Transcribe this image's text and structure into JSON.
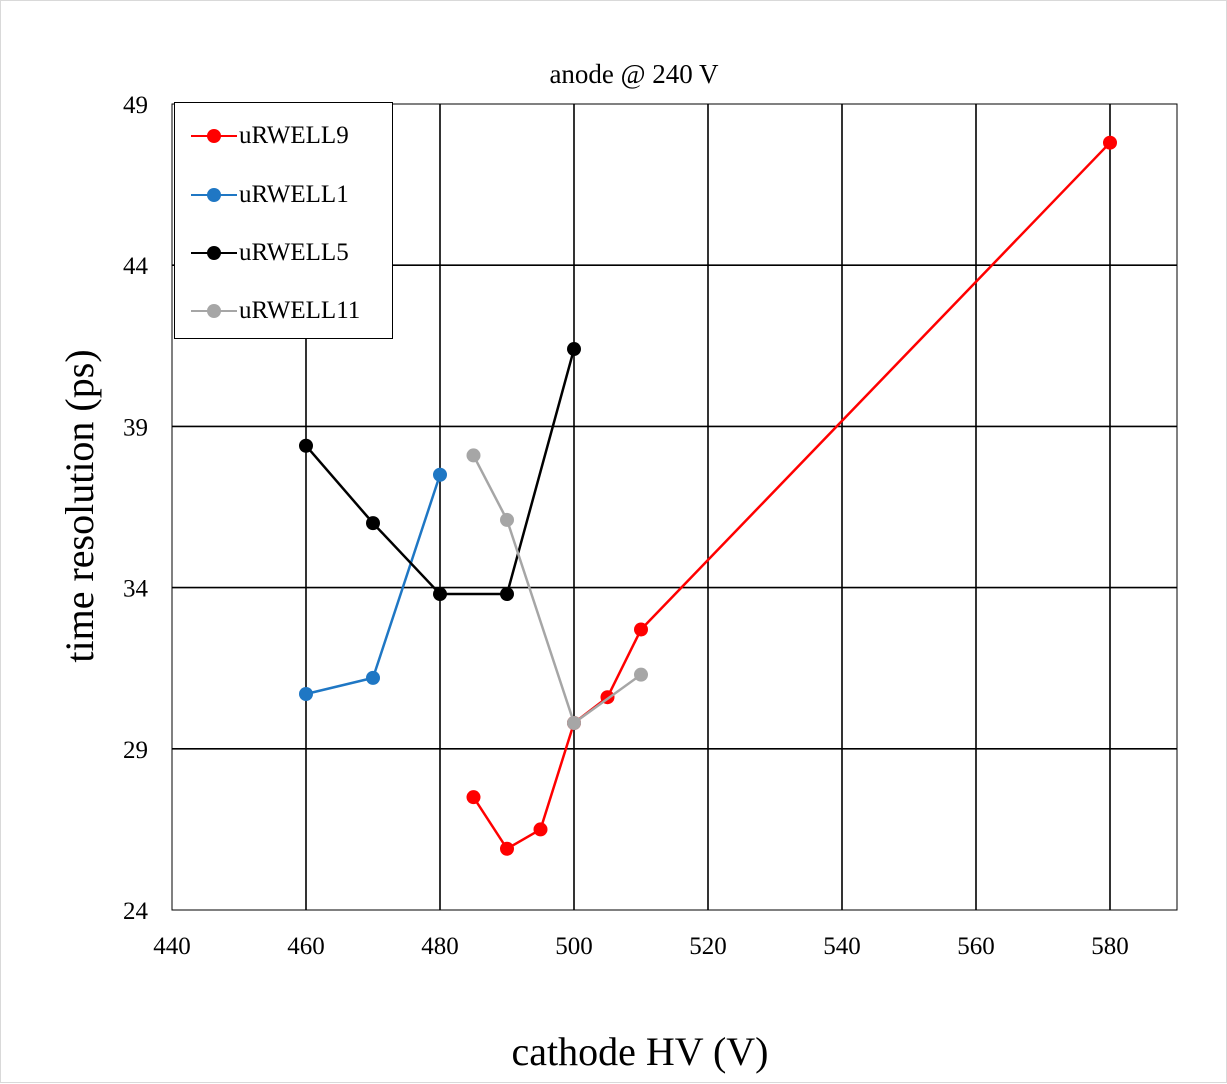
{
  "chart_data": {
    "type": "line",
    "title": "anode @ 240 V",
    "xlabel": "cathode HV (V)",
    "ylabel": "time resolution (ps)",
    "xlim": [
      440,
      590
    ],
    "ylim": [
      24,
      49
    ],
    "xticks": [
      440,
      460,
      480,
      500,
      520,
      540,
      560,
      580
    ],
    "yticks": [
      24,
      29,
      34,
      39,
      44,
      49
    ],
    "grid": true,
    "legend_position": "top-left",
    "series": [
      {
        "name": "uRWELL9",
        "color": "#ff0000",
        "x": [
          485,
          490,
          495,
          500,
          505,
          510,
          580
        ],
        "y": [
          27.5,
          25.9,
          26.5,
          29.8,
          30.6,
          32.7,
          47.8
        ]
      },
      {
        "name": "uRWELL1",
        "color": "#1f77c4",
        "x": [
          460,
          470,
          480
        ],
        "y": [
          30.7,
          31.2,
          37.5
        ]
      },
      {
        "name": "uRWELL5",
        "color": "#000000",
        "x": [
          460,
          470,
          480,
          490,
          500
        ],
        "y": [
          38.4,
          36.0,
          33.8,
          33.8,
          41.4
        ]
      },
      {
        "name": "uRWELL11",
        "color": "#a6a6a6",
        "x": [
          485,
          490,
          500,
          510
        ],
        "y": [
          38.1,
          36.1,
          29.8,
          31.3
        ]
      }
    ]
  }
}
